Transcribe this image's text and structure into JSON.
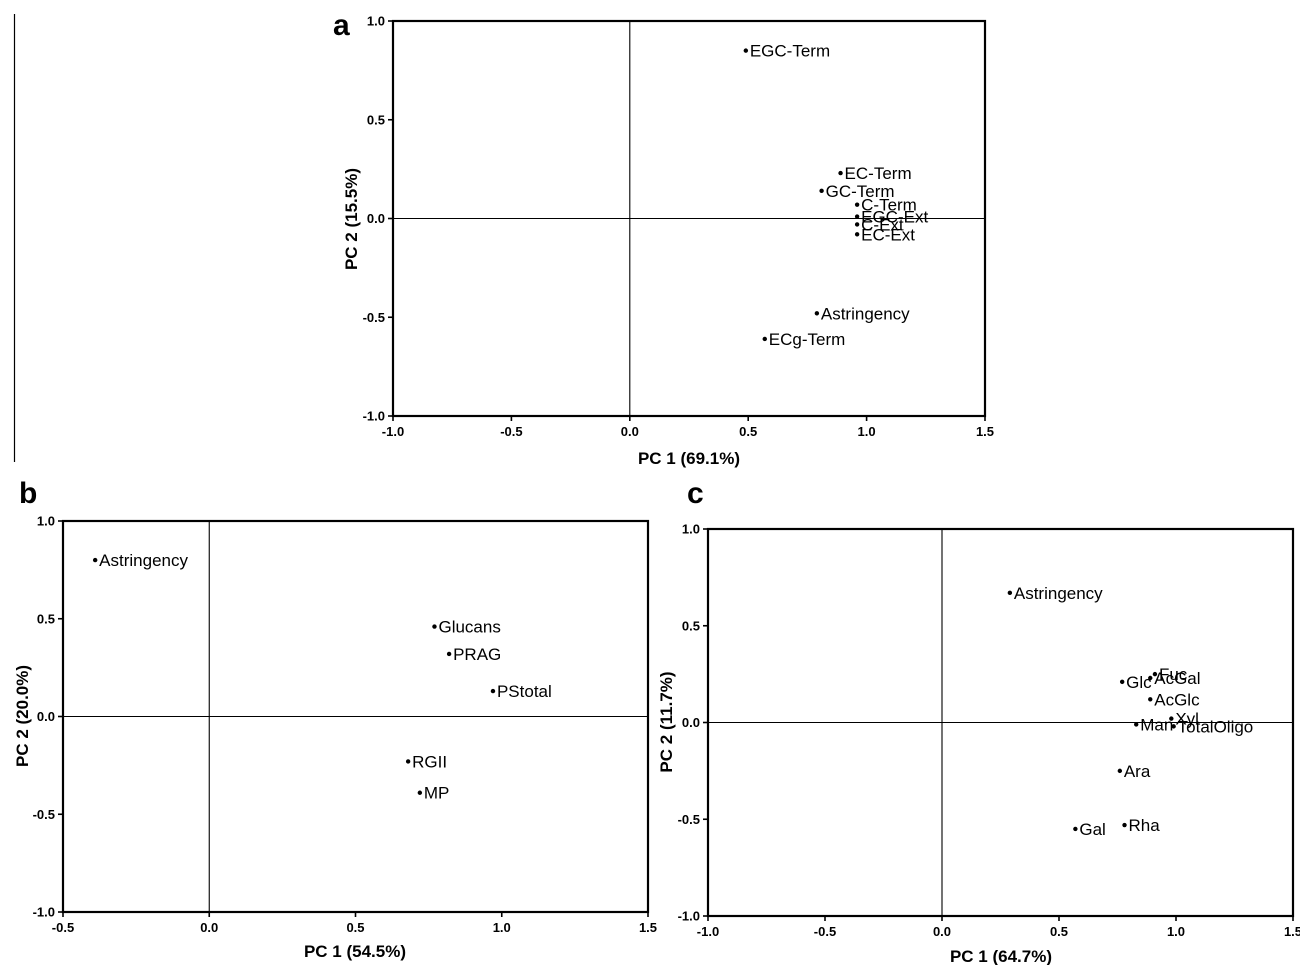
{
  "chart_data": [
    {
      "panel": "a",
      "type": "scatter",
      "title": "",
      "xlabel": "PC 1 (69.1%)",
      "ylabel": "PC 2 (15.5%)",
      "xlim": [
        -1.0,
        1.5
      ],
      "ylim": [
        -1.0,
        1.0
      ],
      "xticks": [
        -1.0,
        -0.5,
        0.0,
        0.5,
        1.0,
        1.5
      ],
      "yticks": [
        -1.0,
        -0.5,
        0.0,
        0.5,
        1.0
      ],
      "grid": false,
      "reference_lines": [
        0,
        0
      ],
      "points": [
        {
          "label": "EGC-Term",
          "x": 0.49,
          "y": 0.85
        },
        {
          "label": "EC-Term",
          "x": 0.89,
          "y": 0.23
        },
        {
          "label": "GC-Term",
          "x": 0.81,
          "y": 0.14
        },
        {
          "label": "C-Term",
          "x": 0.96,
          "y": 0.07
        },
        {
          "label": "EGC-Ext",
          "x": 0.96,
          "y": 0.01
        },
        {
          "label": "C-Ext",
          "x": 0.96,
          "y": -0.03
        },
        {
          "label": "EC-Ext",
          "x": 0.96,
          "y": -0.08
        },
        {
          "label": "Astringency",
          "x": 0.79,
          "y": -0.48
        },
        {
          "label": "ECg-Term",
          "x": 0.57,
          "y": -0.61
        }
      ]
    },
    {
      "panel": "b",
      "type": "scatter",
      "title": "",
      "xlabel": "PC 1 (54.5%)",
      "ylabel": "PC 2 (20.0%)",
      "xlim": [
        -0.5,
        1.5
      ],
      "ylim": [
        -1.0,
        1.0
      ],
      "xticks": [
        -0.5,
        0.0,
        0.5,
        1.0,
        1.5
      ],
      "yticks": [
        -1.0,
        -0.5,
        0.0,
        0.5,
        1.0
      ],
      "grid": false,
      "reference_lines": [
        0,
        0
      ],
      "points": [
        {
          "label": "Astringency",
          "x": -0.39,
          "y": 0.8
        },
        {
          "label": "Glucans",
          "x": 0.77,
          "y": 0.46
        },
        {
          "label": "PRAG",
          "x": 0.82,
          "y": 0.32
        },
        {
          "label": "PStotal",
          "x": 0.97,
          "y": 0.13
        },
        {
          "label": "RGII",
          "x": 0.68,
          "y": -0.23
        },
        {
          "label": "MP",
          "x": 0.72,
          "y": -0.39
        }
      ]
    },
    {
      "panel": "c",
      "type": "scatter",
      "title": "",
      "xlabel": "PC 1 (64.7%)",
      "ylabel": "PC 2 (11.7%)",
      "xlim": [
        -1.0,
        1.5
      ],
      "ylim": [
        -1.0,
        1.0
      ],
      "xticks": [
        -1.0,
        -0.5,
        0.0,
        0.5,
        1.0,
        1.5
      ],
      "xtick_labels": [
        "-1.0",
        "-0.5",
        "0.0",
        "0.5",
        "1.0",
        "1.5"
      ],
      "yticks": [
        -1.0,
        -0.5,
        0.0,
        0.5,
        1.0
      ],
      "grid": false,
      "reference_lines": [
        0,
        0
      ],
      "points": [
        {
          "label": "Astringency",
          "x": 0.29,
          "y": 0.67
        },
        {
          "label": "Fuc",
          "x": 0.91,
          "y": 0.25
        },
        {
          "label": "AcGal",
          "x": 0.89,
          "y": 0.23
        },
        {
          "label": "Glc",
          "x": 0.77,
          "y": 0.21
        },
        {
          "label": "AcGlc",
          "x": 0.89,
          "y": 0.12
        },
        {
          "label": "Xyl",
          "x": 0.98,
          "y": 0.02
        },
        {
          "label": "Man",
          "x": 0.83,
          "y": -0.01
        },
        {
          "label": "TotalOligo",
          "x": 0.99,
          "y": -0.02
        },
        {
          "label": "Ara",
          "x": 0.76,
          "y": -0.25
        },
        {
          "label": "Rha",
          "x": 0.78,
          "y": -0.53
        },
        {
          "label": "Gal",
          "x": 0.57,
          "y": -0.55
        }
      ]
    }
  ]
}
